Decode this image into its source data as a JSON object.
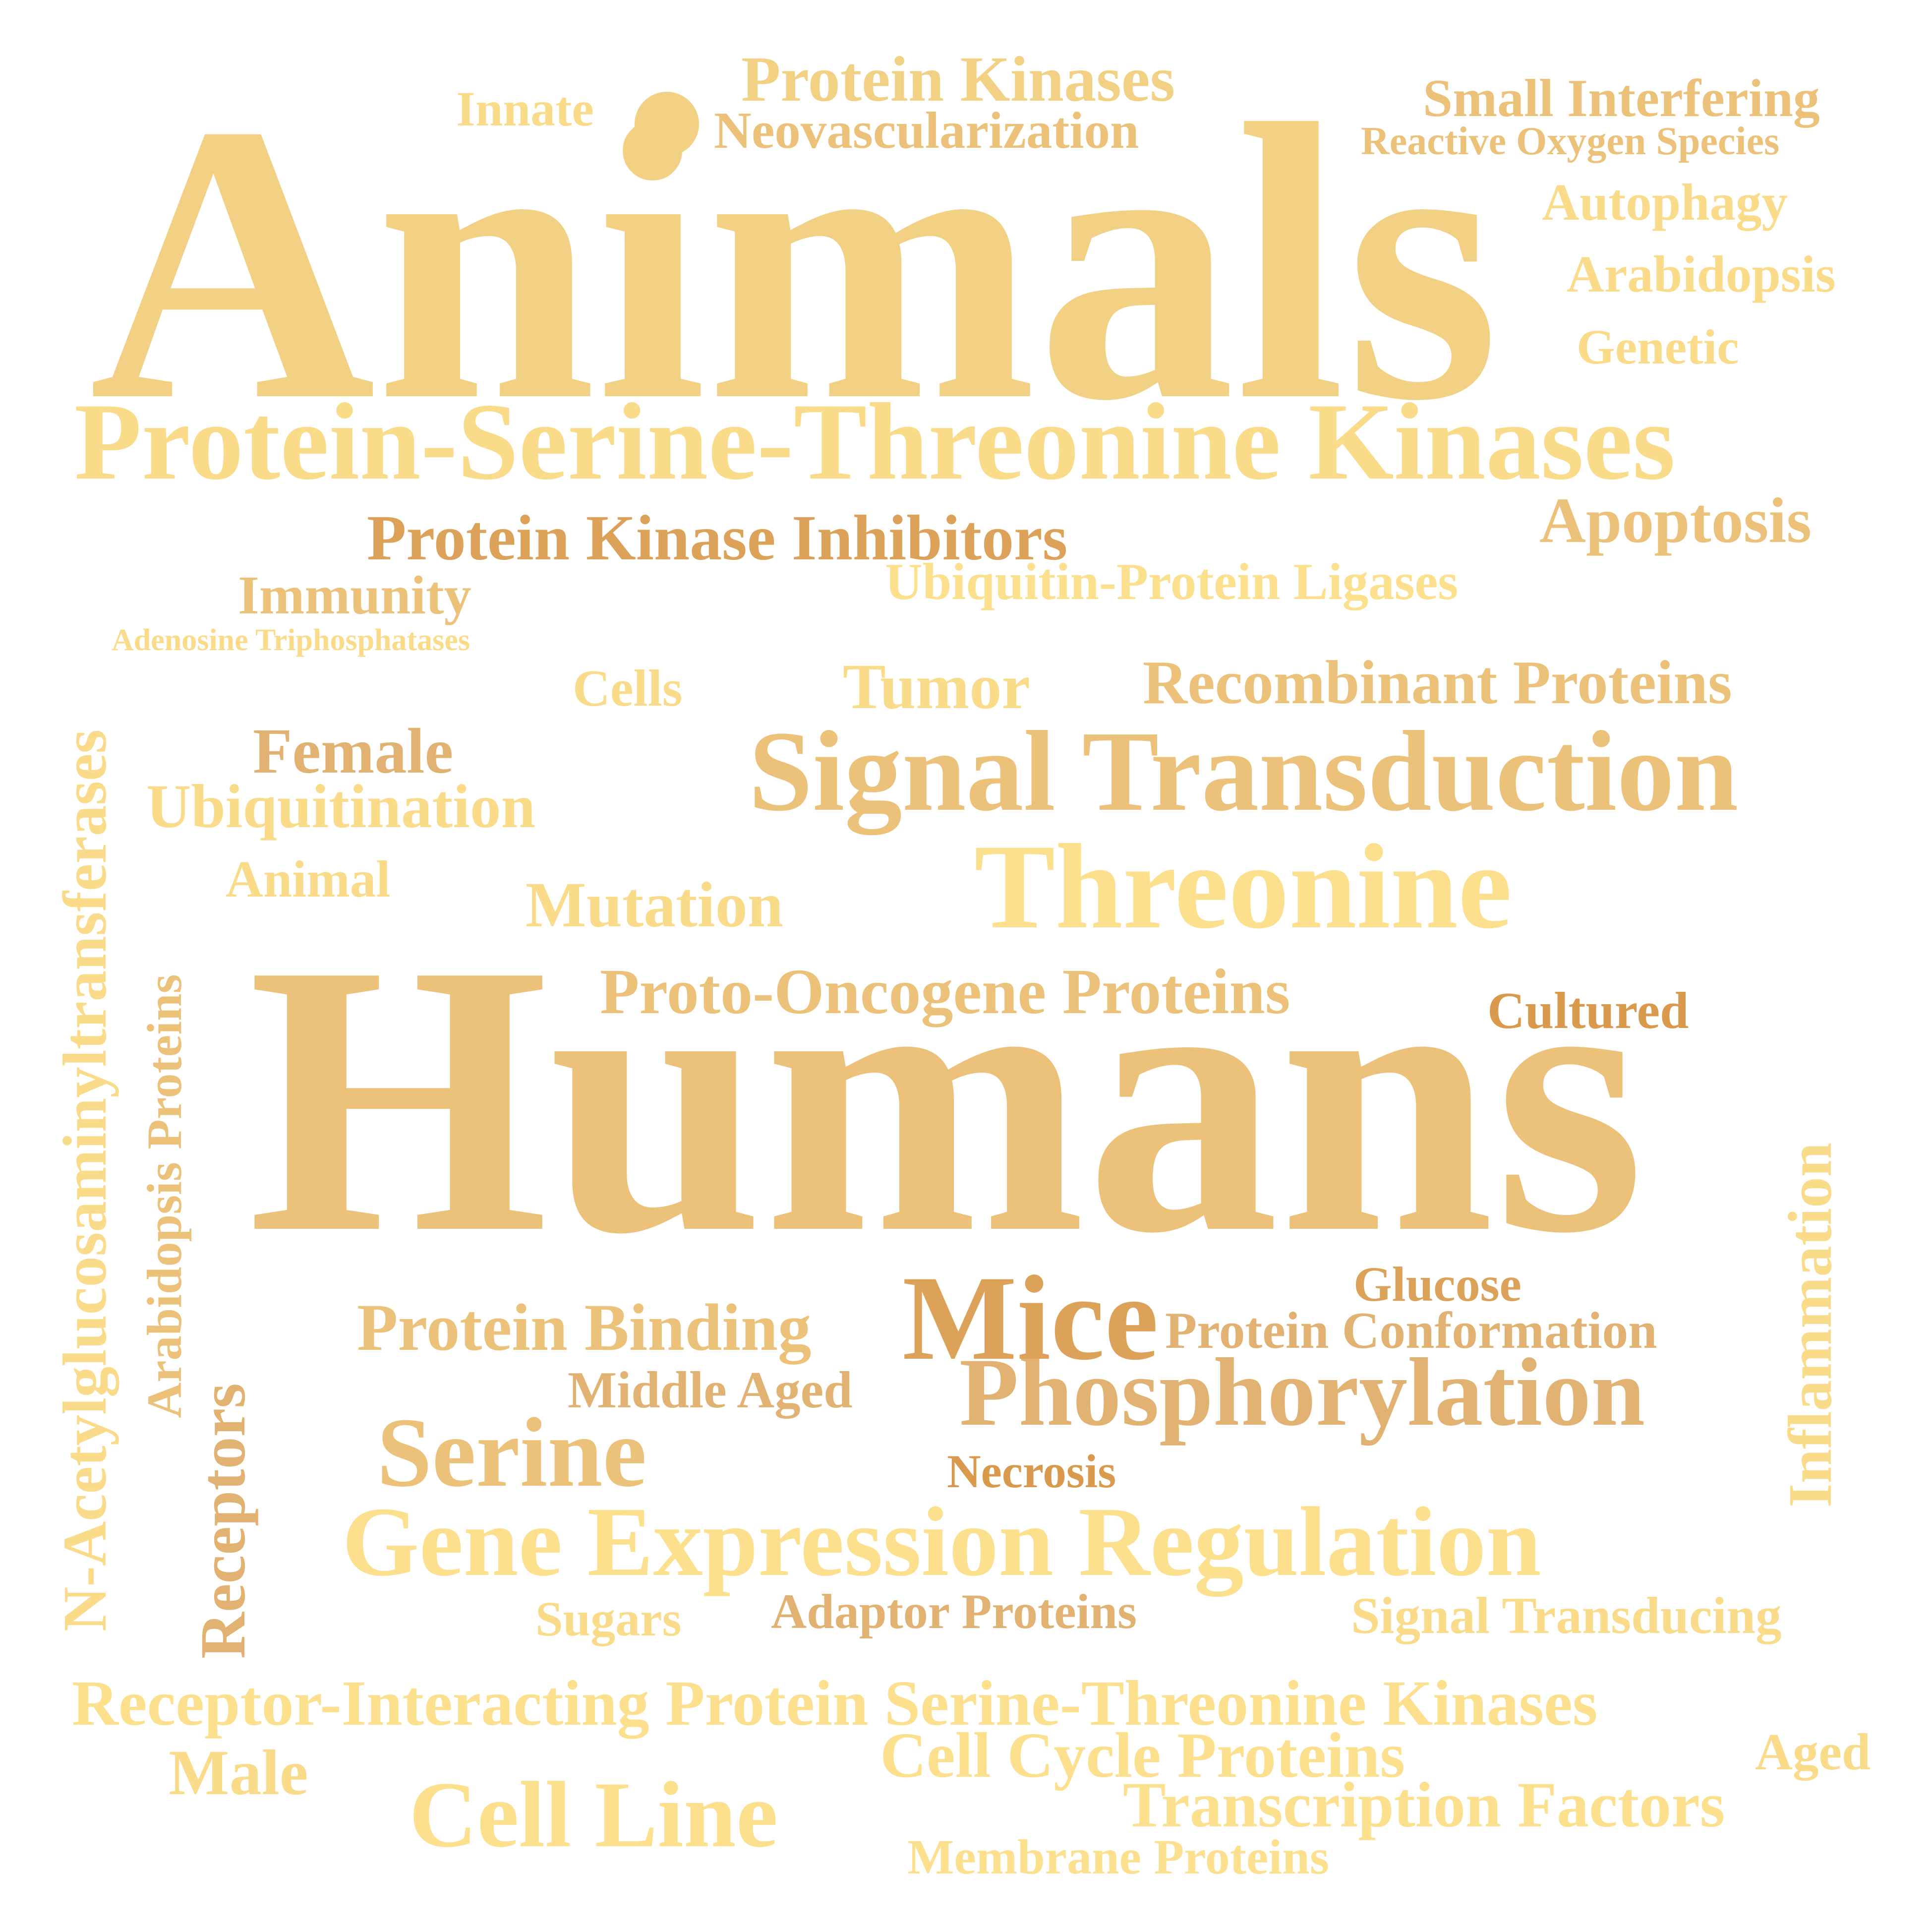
{
  "colors": {
    "background": "#ffffff",
    "light": "#fde08d",
    "pale": "#f9db8a",
    "gold": "#f2d184",
    "warm": "#ecc27a",
    "tan": "#e1b272",
    "orange": "#dda25a",
    "deep": "#d99a4e"
  },
  "words": [
    {
      "id": "animals",
      "text": "Animals",
      "color": "gold"
    },
    {
      "id": "humans",
      "text": "Humans",
      "color": "warm"
    },
    {
      "id": "protein-serine-threonine-kinases",
      "text": "Protein-Serine-Threonine Kinases",
      "color": "pale"
    },
    {
      "id": "signal-transduction",
      "text": "Signal Transduction",
      "color": "warm"
    },
    {
      "id": "threonine",
      "text": "Threonine",
      "color": "light"
    },
    {
      "id": "phosphorylation",
      "text": "Phosphorylation",
      "color": "tan"
    },
    {
      "id": "gene-expression-regulation",
      "text": "Gene Expression Regulation",
      "color": "light"
    },
    {
      "id": "mice",
      "text": "Mice",
      "color": "orange"
    },
    {
      "id": "serine",
      "text": "Serine",
      "color": "warm"
    },
    {
      "id": "cell-line",
      "text": "Cell Line",
      "color": "light"
    },
    {
      "id": "protein-kinases",
      "text": "Protein Kinases",
      "color": "gold"
    },
    {
      "id": "innate",
      "text": "Innate",
      "color": "pale"
    },
    {
      "id": "neovascularization",
      "text": "Neovascularization",
      "color": "warm"
    },
    {
      "id": "small-interfering",
      "text": "Small Interfering",
      "color": "warm"
    },
    {
      "id": "reactive-oxygen-species",
      "text": "Reactive Oxygen Species",
      "color": "warm"
    },
    {
      "id": "autophagy",
      "text": "Autophagy",
      "color": "pale"
    },
    {
      "id": "arabidopsis",
      "text": "Arabidopsis",
      "color": "pale"
    },
    {
      "id": "genetic",
      "text": "Genetic",
      "color": "pale"
    },
    {
      "id": "apoptosis",
      "text": "Apoptosis",
      "color": "warm"
    },
    {
      "id": "protein-kinase-inhibitors",
      "text": "Protein Kinase Inhibitors",
      "color": "orange"
    },
    {
      "id": "ubiquitin-protein-ligases",
      "text": "Ubiquitin-Protein Ligases",
      "color": "light"
    },
    {
      "id": "immunity",
      "text": "Immunity",
      "color": "warm"
    },
    {
      "id": "adenosine-triphosphatases",
      "text": "Adenosine Triphosphatases",
      "color": "pale"
    },
    {
      "id": "cells",
      "text": "Cells",
      "color": "pale"
    },
    {
      "id": "tumor",
      "text": "Tumor",
      "color": "pale"
    },
    {
      "id": "recombinant-proteins",
      "text": "Recombinant Proteins",
      "color": "warm"
    },
    {
      "id": "female",
      "text": "Female",
      "color": "tan"
    },
    {
      "id": "ubiquitination",
      "text": "Ubiquitination",
      "color": "pale"
    },
    {
      "id": "animal",
      "text": "Animal",
      "color": "pale"
    },
    {
      "id": "mutation",
      "text": "Mutation",
      "color": "pale"
    },
    {
      "id": "proto-oncogene-proteins",
      "text": "Proto-Oncogene Proteins",
      "color": "warm"
    },
    {
      "id": "cultured",
      "text": "Cultured",
      "color": "deep"
    },
    {
      "id": "glucose",
      "text": "Glucose",
      "color": "orange"
    },
    {
      "id": "protein-binding",
      "text": "Protein Binding",
      "color": "warm"
    },
    {
      "id": "protein-conformation",
      "text": "Protein Conformation",
      "color": "tan"
    },
    {
      "id": "middle-aged",
      "text": "Middle Aged",
      "color": "tan"
    },
    {
      "id": "necrosis",
      "text": "Necrosis",
      "color": "deep"
    },
    {
      "id": "sugars",
      "text": "Sugars",
      "color": "pale"
    },
    {
      "id": "adaptor-proteins",
      "text": "Adaptor Proteins",
      "color": "tan"
    },
    {
      "id": "signal-transducing",
      "text": "Signal Transducing",
      "color": "pale"
    },
    {
      "id": "receptor-interacting",
      "text": "Receptor-Interacting Protein Serine-Threonine Kinases",
      "color": "light"
    },
    {
      "id": "male",
      "text": "Male",
      "color": "pale"
    },
    {
      "id": "cell-cycle-proteins",
      "text": "Cell Cycle Proteins",
      "color": "light"
    },
    {
      "id": "aged",
      "text": "Aged",
      "color": "pale"
    },
    {
      "id": "transcription-factors",
      "text": "Transcription Factors",
      "color": "light"
    },
    {
      "id": "membrane-proteins",
      "text": "Membrane Proteins",
      "color": "light"
    },
    {
      "id": "n-acetylglucosaminyltransferases",
      "text": "N-Acetylglucosaminyltransferases",
      "color": "pale"
    },
    {
      "id": "arabidopsis-proteins",
      "text": "Arabidopsis Proteins",
      "color": "warm"
    },
    {
      "id": "receptors",
      "text": "Receptors",
      "color": "tan"
    },
    {
      "id": "inflammation",
      "text": "Inflammation",
      "color": "pale"
    }
  ]
}
